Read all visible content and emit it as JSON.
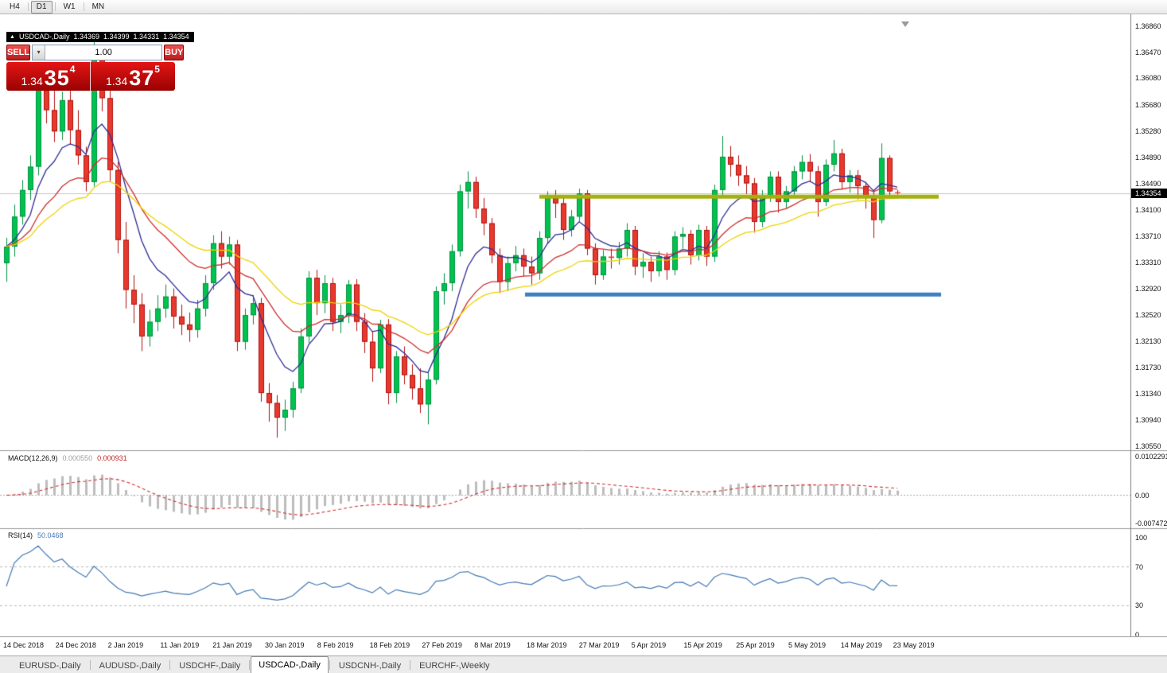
{
  "toolbar": {
    "timeframes": [
      {
        "label": "H4",
        "active": false
      },
      {
        "label": "D1",
        "active": true
      },
      {
        "label": "W1",
        "active": false
      },
      {
        "label": "MN",
        "active": false
      }
    ]
  },
  "chart": {
    "title": {
      "symbol": "USDCAD-,Daily",
      "open": "1.34369",
      "high": "1.34399",
      "low": "1.34331",
      "close": "1.34354"
    },
    "trade_panel": {
      "sell_label": "SELL",
      "buy_label": "BUY",
      "volume": "1.00",
      "sell_price": {
        "base": "1.34",
        "big": "35",
        "sup": "4"
      },
      "buy_price": {
        "base": "1.34",
        "big": "37",
        "sup": "5"
      }
    },
    "price_axis": {
      "ticks": [
        "1.36860",
        "1.36470",
        "1.36080",
        "1.35680",
        "1.35280",
        "1.34890",
        "1.34490",
        "1.34100",
        "1.33710",
        "1.33310",
        "1.32920",
        "1.32520",
        "1.32130",
        "1.31730",
        "1.31340",
        "1.30940",
        "1.30550"
      ],
      "current": "1.34354"
    },
    "date_axis": [
      "14 Dec 2018",
      "24 Dec 2018",
      "2 Jan 2019",
      "11 Jan 2019",
      "21 Jan 2019",
      "30 Jan 2019",
      "8 Feb 2019",
      "18 Feb 2019",
      "27 Feb 2019",
      "8 Mar 2019",
      "18 Mar 2019",
      "27 Mar 2019",
      "5 Apr 2019",
      "15 Apr 2019",
      "25 Apr 2019",
      "5 May 2019",
      "14 May 2019",
      "23 May 2019"
    ]
  },
  "chart_data": {
    "type": "candlestick",
    "symbol": "USDCAD",
    "timeframe": "Daily",
    "x_range": [
      "14 Dec 2018",
      "24 May 2019"
    ],
    "y_range": [
      1.3055,
      1.3686
    ],
    "bid": 1.34354,
    "candles": [
      [
        1.333,
        1.3368,
        1.3302,
        1.3355
      ],
      [
        1.3355,
        1.3418,
        1.334,
        1.34
      ],
      [
        1.34,
        1.3455,
        1.3388,
        1.344
      ],
      [
        1.344,
        1.3492,
        1.3425,
        1.3475
      ],
      [
        1.3475,
        1.36,
        1.3462,
        1.359
      ],
      [
        1.359,
        1.3618,
        1.354,
        1.356
      ],
      [
        1.356,
        1.3595,
        1.3512,
        1.3528
      ],
      [
        1.3528,
        1.3588,
        1.3515,
        1.3575
      ],
      [
        1.3575,
        1.359,
        1.3508,
        1.353
      ],
      [
        1.353,
        1.356,
        1.3478,
        1.3492
      ],
      [
        1.3492,
        1.3505,
        1.3438,
        1.3452
      ],
      [
        1.3452,
        1.3664,
        1.3445,
        1.3648
      ],
      [
        1.3648,
        1.3656,
        1.3558,
        1.3578
      ],
      [
        1.3578,
        1.3598,
        1.3452,
        1.347
      ],
      [
        1.347,
        1.3482,
        1.3345,
        1.3365
      ],
      [
        1.3365,
        1.3392,
        1.3262,
        1.329
      ],
      [
        1.329,
        1.3312,
        1.324,
        1.3268
      ],
      [
        1.3268,
        1.3285,
        1.3198,
        1.322
      ],
      [
        1.322,
        1.326,
        1.3205,
        1.3242
      ],
      [
        1.3242,
        1.3282,
        1.3228,
        1.3262
      ],
      [
        1.3262,
        1.3298,
        1.3248,
        1.328
      ],
      [
        1.328,
        1.3292,
        1.3232,
        1.325
      ],
      [
        1.325,
        1.3268,
        1.3222,
        1.3238
      ],
      [
        1.3238,
        1.3256,
        1.3212,
        1.323
      ],
      [
        1.323,
        1.3275,
        1.3218,
        1.3262
      ],
      [
        1.3262,
        1.3312,
        1.325,
        1.33
      ],
      [
        1.33,
        1.3372,
        1.329,
        1.336
      ],
      [
        1.336,
        1.3378,
        1.3322,
        1.334
      ],
      [
        1.334,
        1.337,
        1.3328,
        1.3358
      ],
      [
        1.3358,
        1.3365,
        1.3198,
        1.3212
      ],
      [
        1.3212,
        1.3262,
        1.32,
        1.3252
      ],
      [
        1.3252,
        1.3282,
        1.3238,
        1.327
      ],
      [
        1.327,
        1.3278,
        1.3122,
        1.3135
      ],
      [
        1.3135,
        1.315,
        1.3092,
        1.312
      ],
      [
        1.312,
        1.3132,
        1.3068,
        1.3098
      ],
      [
        1.3098,
        1.3125,
        1.3078,
        1.311
      ],
      [
        1.311,
        1.3152,
        1.3098,
        1.3142
      ],
      [
        1.3142,
        1.3232,
        1.3135,
        1.322
      ],
      [
        1.322,
        1.3318,
        1.321,
        1.3308
      ],
      [
        1.3308,
        1.332,
        1.3252,
        1.327
      ],
      [
        1.327,
        1.3312,
        1.3255,
        1.33
      ],
      [
        1.33,
        1.3308,
        1.3228,
        1.3242
      ],
      [
        1.3242,
        1.3268,
        1.3225,
        1.3252
      ],
      [
        1.3252,
        1.3305,
        1.324,
        1.3298
      ],
      [
        1.3298,
        1.3306,
        1.3228,
        1.3242
      ],
      [
        1.3242,
        1.3255,
        1.3195,
        1.3212
      ],
      [
        1.3212,
        1.3228,
        1.3152,
        1.3172
      ],
      [
        1.3172,
        1.3245,
        1.3165,
        1.3238
      ],
      [
        1.3238,
        1.3246,
        1.3118,
        1.3135
      ],
      [
        1.3135,
        1.3198,
        1.312,
        1.319
      ],
      [
        1.319,
        1.3205,
        1.3148,
        1.3162
      ],
      [
        1.3162,
        1.3178,
        1.3125,
        1.3142
      ],
      [
        1.3142,
        1.3172,
        1.3105,
        1.3118
      ],
      [
        1.3118,
        1.3165,
        1.3088,
        1.3155
      ],
      [
        1.3155,
        1.3295,
        1.3148,
        1.3288
      ],
      [
        1.3288,
        1.3315,
        1.3268,
        1.33
      ],
      [
        1.33,
        1.3358,
        1.3288,
        1.3348
      ],
      [
        1.3348,
        1.3448,
        1.334,
        1.3438
      ],
      [
        1.3438,
        1.3468,
        1.3412,
        1.3452
      ],
      [
        1.3452,
        1.346,
        1.3398,
        1.3412
      ],
      [
        1.3412,
        1.3428,
        1.3372,
        1.339
      ],
      [
        1.339,
        1.3398,
        1.333,
        1.3342
      ],
      [
        1.3342,
        1.3352,
        1.3285,
        1.3302
      ],
      [
        1.3302,
        1.334,
        1.3288,
        1.333
      ],
      [
        1.333,
        1.3356,
        1.3318,
        1.3342
      ],
      [
        1.3342,
        1.3352,
        1.331,
        1.3325
      ],
      [
        1.3325,
        1.334,
        1.3298,
        1.3315
      ],
      [
        1.3315,
        1.3378,
        1.3305,
        1.3368
      ],
      [
        1.3368,
        1.3438,
        1.336,
        1.3428
      ],
      [
        1.3428,
        1.344,
        1.3398,
        1.342
      ],
      [
        1.342,
        1.343,
        1.3365,
        1.338
      ],
      [
        1.338,
        1.341,
        1.337,
        1.34
      ],
      [
        1.34,
        1.3442,
        1.3392,
        1.3435
      ],
      [
        1.3435,
        1.344,
        1.3342,
        1.3352
      ],
      [
        1.3352,
        1.336,
        1.3298,
        1.3312
      ],
      [
        1.3312,
        1.335,
        1.3305,
        1.334
      ],
      [
        1.334,
        1.3352,
        1.3322,
        1.3338
      ],
      [
        1.3338,
        1.3362,
        1.3328,
        1.3352
      ],
      [
        1.3352,
        1.339,
        1.334,
        1.338
      ],
      [
        1.338,
        1.3386,
        1.3312,
        1.3325
      ],
      [
        1.3325,
        1.3345,
        1.3308,
        1.3332
      ],
      [
        1.3332,
        1.334,
        1.3302,
        1.3318
      ],
      [
        1.3318,
        1.3348,
        1.331,
        1.334
      ],
      [
        1.334,
        1.3346,
        1.3305,
        1.332
      ],
      [
        1.332,
        1.3378,
        1.3312,
        1.337
      ],
      [
        1.337,
        1.3384,
        1.3352,
        1.3374
      ],
      [
        1.3374,
        1.338,
        1.3328,
        1.3342
      ],
      [
        1.3342,
        1.3388,
        1.3334,
        1.338
      ],
      [
        1.338,
        1.3386,
        1.3326,
        1.334
      ],
      [
        1.334,
        1.3448,
        1.3332,
        1.344
      ],
      [
        1.344,
        1.3521,
        1.3432,
        1.349
      ],
      [
        1.349,
        1.3506,
        1.346,
        1.3478
      ],
      [
        1.3478,
        1.3492,
        1.3446,
        1.3462
      ],
      [
        1.3462,
        1.3476,
        1.3434,
        1.345
      ],
      [
        1.345,
        1.3458,
        1.3376,
        1.3392
      ],
      [
        1.3392,
        1.344,
        1.3384,
        1.343
      ],
      [
        1.343,
        1.3468,
        1.3422,
        1.346
      ],
      [
        1.346,
        1.3468,
        1.3406,
        1.3422
      ],
      [
        1.3422,
        1.3446,
        1.3412,
        1.3438
      ],
      [
        1.3438,
        1.3476,
        1.343,
        1.3468
      ],
      [
        1.3468,
        1.3492,
        1.3456,
        1.3482
      ],
      [
        1.3482,
        1.3494,
        1.3452,
        1.3468
      ],
      [
        1.3468,
        1.3476,
        1.34,
        1.3422
      ],
      [
        1.3422,
        1.3486,
        1.3416,
        1.3478
      ],
      [
        1.3478,
        1.3515,
        1.3468,
        1.3495
      ],
      [
        1.3495,
        1.3502,
        1.3442,
        1.3452
      ],
      [
        1.3452,
        1.347,
        1.3436,
        1.3462
      ],
      [
        1.3462,
        1.347,
        1.3426,
        1.3446
      ],
      [
        1.3446,
        1.3452,
        1.3412,
        1.343
      ],
      [
        1.343,
        1.3438,
        1.3368,
        1.3395
      ],
      [
        1.3395,
        1.351,
        1.339,
        1.3488
      ],
      [
        1.3488,
        1.3492,
        1.3428,
        1.3438
      ],
      [
        1.34369,
        1.34399,
        1.34331,
        1.34354
      ]
    ],
    "moving_averages": [
      {
        "period": 8,
        "color": "#2d2d96"
      },
      {
        "period": 18,
        "color": "#cf2e2e"
      },
      {
        "period": 30,
        "color": "#efd303"
      }
    ],
    "trendlines": [
      {
        "type": "horizontal",
        "price": 1.343,
        "x1_bar": 67,
        "x2_bar": 117.2,
        "color": "#a3b10e",
        "width": 5
      },
      {
        "type": "horizontal",
        "price": 1.3283,
        "x1_bar": 65.2,
        "x2_bar": 117.5,
        "color": "#3e7fc1",
        "width": 5
      }
    ],
    "indicators": {
      "macd": {
        "label": "MACD(12,26,9)",
        "params": [
          12,
          26,
          9
        ],
        "value_main": "0.000550",
        "value_signal": "0.000931",
        "scale_max": "0.0102291",
        "scale_zero": "0.00",
        "scale_min": "-0.0074727"
      },
      "rsi": {
        "label": "RSI(14)",
        "period": 14,
        "value": "50.0468",
        "levels": [
          "100",
          "70",
          "30",
          "0"
        ]
      }
    },
    "style": {
      "up_fill": "#00c24e",
      "up_border": "#069243",
      "down_fill": "#e8392f",
      "down_border": "#b01410",
      "bid_line": "#c8c8c8",
      "macd_hist": "#bdbdbd",
      "macd_signal": "#d23030",
      "rsi_line": "#4379b5",
      "level_line": "#b8b8b8"
    }
  },
  "tabs": {
    "items": [
      {
        "label": "EURUSD-,Daily",
        "active": false
      },
      {
        "label": "AUDUSD-,Daily",
        "active": false
      },
      {
        "label": "USDCHF-,Daily",
        "active": false
      },
      {
        "label": "USDCAD-,Daily",
        "active": true
      },
      {
        "label": "USDCNH-,Daily",
        "active": false
      },
      {
        "label": "EURCHF-,Weekly",
        "active": false
      }
    ]
  }
}
